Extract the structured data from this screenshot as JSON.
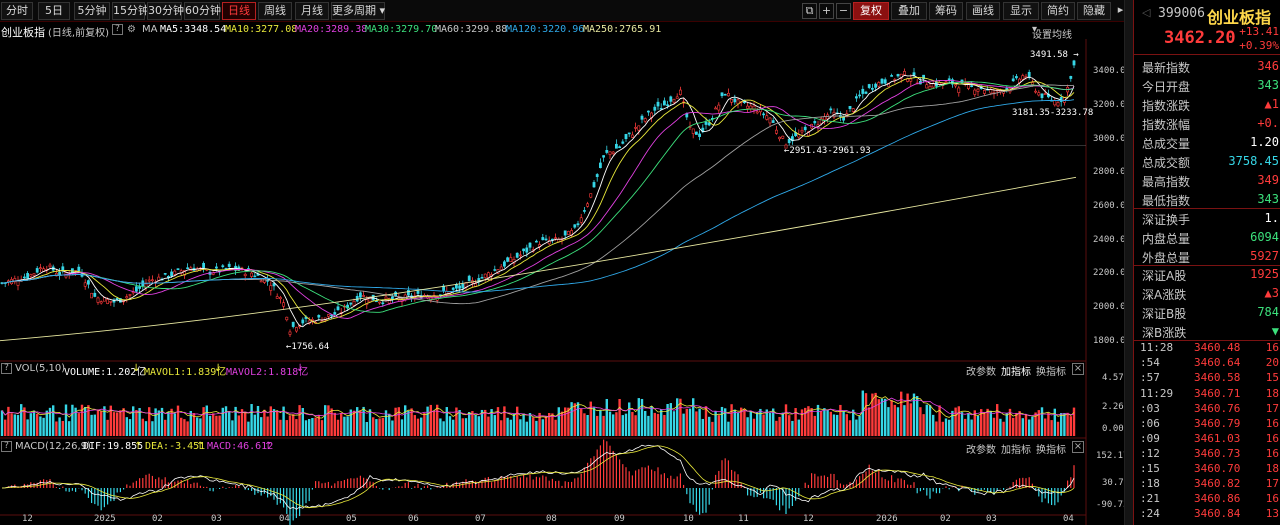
{
  "toolbar": {
    "periods": [
      "分时",
      "5日",
      "5分钟",
      "15分钟",
      "30分钟",
      "60分钟",
      "日线",
      "周线",
      "月线",
      "更多周期"
    ],
    "active_period": "日线",
    "right_tools": [
      "复权",
      "叠加",
      "筹码",
      "画线",
      "显示",
      "简约",
      "隐藏"
    ],
    "active_tool": "复权"
  },
  "ma_line": {
    "name": "创业板指",
    "mode": "(日线,前复权)",
    "ma_label": "MA",
    "ma5": "MA5:3348.54",
    "ma10": "MA10:3277.08",
    "ma20": "MA20:3289.38",
    "ma30": "MA30:3279.70",
    "ma60": "MA60:3299.88",
    "ma120": "MA120:3220.96",
    "ma250": "MA250:2765.91",
    "settings": "设置均线"
  },
  "price_axis": [
    "3400.00",
    "3200.00",
    "3000.00",
    "2800.00",
    "2600.00",
    "2400.00",
    "2200.00",
    "2000.00",
    "1800.00"
  ],
  "annotations": {
    "high": "3491.58",
    "low": "1756.64",
    "mid_range": "2951.43-2961.93",
    "recent_range": "3181.35-3233.78"
  },
  "vol_panel": {
    "title": "VOL(5,10)",
    "volume": "VOLUME:1.202亿",
    "mavol1": "MAVOL1:1.839亿",
    "mavol2": "MAVOL2:1.818亿",
    "axis": [
      "4.57",
      "2.26",
      "0.00"
    ],
    "btn_params": "改参数",
    "btn_add": "加指标",
    "btn_swap": "换指标"
  },
  "macd_panel": {
    "title": "MACD(12,26,9)",
    "dif": "DIF:19.855",
    "dea": "DEA:-3.451",
    "macd": "MACD:46.612",
    "axis": [
      "152.17",
      "30.72",
      "-90.73"
    ],
    "btn_params": "改参数",
    "btn_add": "加指标",
    "btn_swap": "换指标"
  },
  "dates": [
    "12",
    "2025",
    "02",
    "03",
    "04",
    "05",
    "06",
    "07",
    "08",
    "09",
    "10",
    "11",
    "12",
    "2026",
    "02",
    "03",
    "04"
  ],
  "quote": {
    "code": "399006",
    "name": "创业板指",
    "price": "3462.20",
    "change": "+13.41",
    "change_pct": "+0.39%",
    "rows": [
      {
        "k": "最新指数",
        "v": "346"
      },
      {
        "k": "今日开盘",
        "v": "343"
      },
      {
        "k": "指数涨跌",
        "v": "▲1"
      },
      {
        "k": "指数涨幅",
        "v": "+0."
      },
      {
        "k": "总成交量",
        "v": "1.20"
      },
      {
        "k": "总成交额",
        "v": "3758.45"
      },
      {
        "k": "最高指数",
        "v": "349"
      },
      {
        "k": "最低指数",
        "v": "343"
      }
    ],
    "rows2": [
      {
        "k": "深证换手",
        "v": "1."
      },
      {
        "k": "内盘总量",
        "v": "6094"
      },
      {
        "k": "外盘总量",
        "v": "5927"
      }
    ],
    "rows3": [
      {
        "k": "深证A股",
        "v": "1925"
      },
      {
        "k": "深A涨跌",
        "v": "▲3"
      },
      {
        "k": "深证B股",
        "v": "784"
      },
      {
        "k": "深B涨跌",
        "v": "▼"
      }
    ]
  },
  "ticks": [
    {
      "t": "11:28",
      "p": "3460.48",
      "q": "16"
    },
    {
      "t": ":54",
      "p": "3460.64",
      "q": "20"
    },
    {
      "t": ":57",
      "p": "3460.58",
      "q": "15"
    },
    {
      "t": "11:29",
      "p": "3460.71",
      "q": "18"
    },
    {
      "t": ":03",
      "p": "3460.76",
      "q": "17"
    },
    {
      "t": ":06",
      "p": "3460.79",
      "q": "16"
    },
    {
      "t": ":09",
      "p": "3461.03",
      "q": "16"
    },
    {
      "t": ":12",
      "p": "3460.73",
      "q": "16"
    },
    {
      "t": ":15",
      "p": "3460.70",
      "q": "18"
    },
    {
      "t": ":18",
      "p": "3460.82",
      "q": "17"
    },
    {
      "t": ":21",
      "p": "3460.86",
      "q": "16"
    },
    {
      "t": ":24",
      "p": "3460.84",
      "q": "13"
    }
  ],
  "colors": {
    "up": "#ff3b3b",
    "down": "#36d6e6",
    "ma5": "#ffffff",
    "ma10": "#e8e83a",
    "ma20": "#e040e0",
    "ma30": "#3ce07c",
    "ma60": "#a0a0a0",
    "ma120": "#2fa8e8",
    "ma250": "#e8e8a0"
  }
}
